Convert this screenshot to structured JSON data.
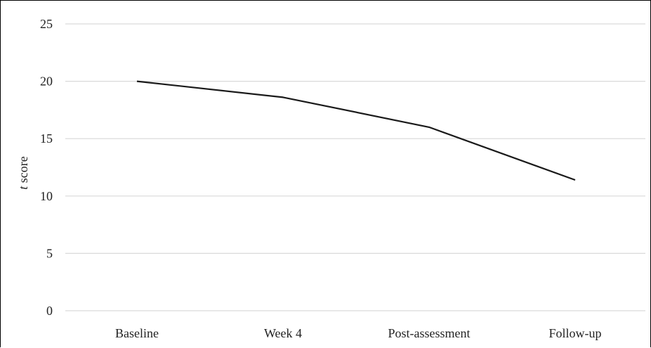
{
  "chart_data": {
    "type": "line",
    "categories": [
      "Baseline",
      "Week 4",
      "Post-assessment",
      "Follow-up"
    ],
    "series": [
      {
        "values": [
          20,
          18.6,
          16,
          11.4
        ],
        "color": "#1a1a1a"
      }
    ],
    "ylabel": {
      "italic": "t",
      "rest": " score"
    },
    "ylim": [
      0,
      25
    ],
    "yticks": [
      0,
      5,
      10,
      15,
      20,
      25
    ],
    "grid": true,
    "legend": "none"
  }
}
